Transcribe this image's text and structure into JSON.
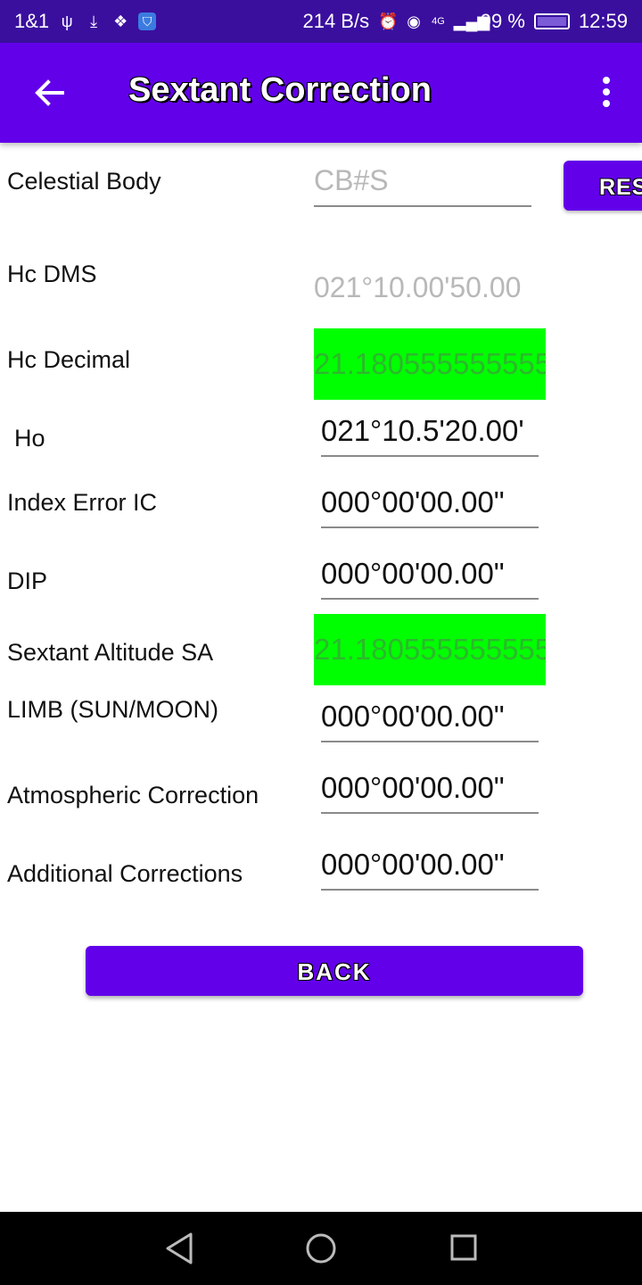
{
  "status_bar": {
    "carrier": "1&1",
    "net_speed": "214 B/s",
    "network": "4G",
    "battery": "99 %",
    "battery_level": 0.99,
    "time": "12:59"
  },
  "appbar": {
    "title": "Sextant Correction"
  },
  "form": {
    "celestial_body": {
      "label": "Celestial Body",
      "placeholder": "CB#S",
      "reset_label": "RESET"
    },
    "hc_dms": {
      "label": "Hc DMS",
      "value": "021°10.00'50.00"
    },
    "hc_decimal": {
      "label": "Hc Decimal",
      "value": "21.180555555555"
    },
    "ho": {
      "label": "Ho",
      "value": "021°10.5'20.00'"
    },
    "index_error": {
      "label": "Index Error IC",
      "value": "000°00'00.00\""
    },
    "dip": {
      "label": "DIP",
      "value": "000°00'00.00\""
    },
    "sextant_altitude": {
      "label": "Sextant Altitude SA",
      "value": "21.180555555555"
    },
    "limb": {
      "label": "LIMB (SUN/MOON)",
      "value": "000°00'00.00\""
    },
    "atmospheric": {
      "label": "Atmospheric Correction",
      "value": "000°00'00.00\""
    },
    "additional": {
      "label": "Additional Corrections",
      "value": "000°00'00.00\""
    }
  },
  "back_button": {
    "label": "BACK"
  },
  "colors": {
    "status_bar": "#3a0f9e",
    "appbar": "#6200ea",
    "highlight": "#00ff00"
  }
}
